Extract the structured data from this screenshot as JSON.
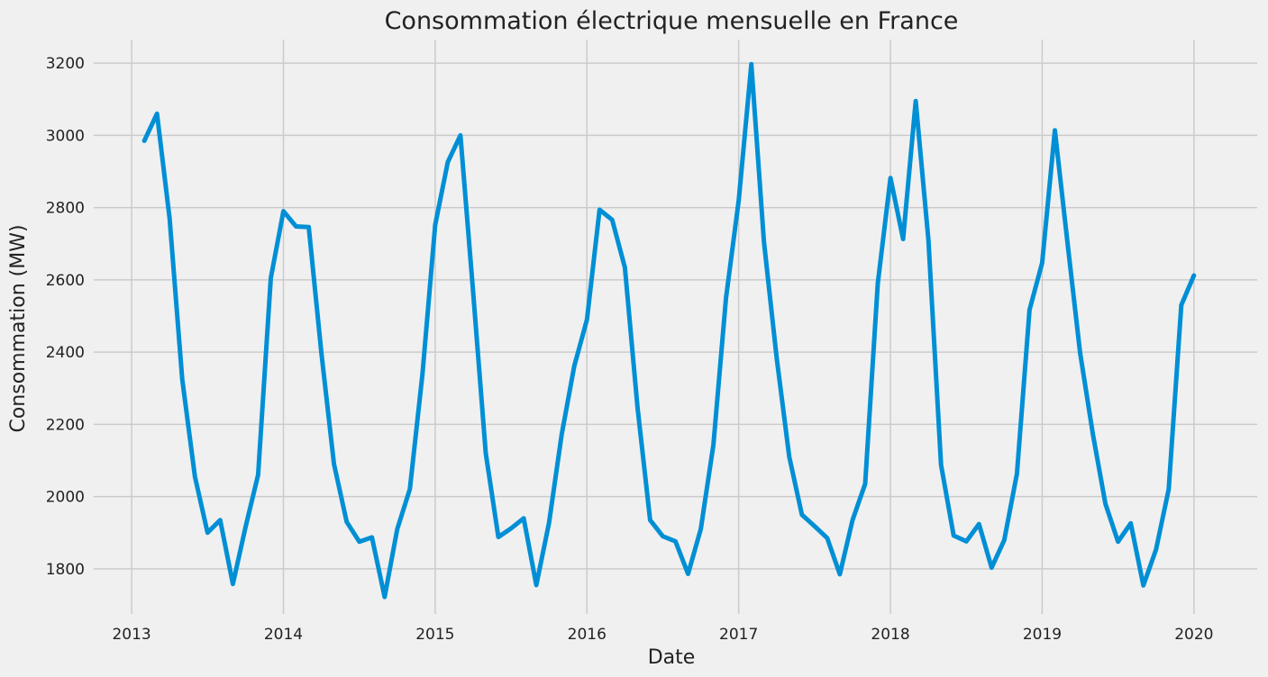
{
  "chart_data": {
    "type": "line",
    "title": "Consommation électrique mensuelle en France",
    "xlabel": "Date",
    "ylabel": "Consommation (MW)",
    "grid": true,
    "line_color": "#008fd5",
    "background_color": "#f0f0f0",
    "x_tick_labels": [
      "2013",
      "2014",
      "2015",
      "2016",
      "2017",
      "2018",
      "2019",
      "2020"
    ],
    "y_ticks": [
      1800,
      2000,
      2200,
      2400,
      2600,
      2800,
      3000,
      3200
    ],
    "xlim": [
      "2012-10",
      "2020-06"
    ],
    "ylim": [
      1675,
      3265
    ],
    "series": [
      {
        "x": [
          "2013-02",
          "2013-03",
          "2013-04",
          "2013-05",
          "2013-06",
          "2013-07",
          "2013-08",
          "2013-09",
          "2013-10",
          "2013-11",
          "2013-12",
          "2014-01",
          "2014-02",
          "2014-03",
          "2014-04",
          "2014-05",
          "2014-06",
          "2014-07",
          "2014-08",
          "2014-09",
          "2014-10",
          "2014-11",
          "2014-12",
          "2015-01",
          "2015-02",
          "2015-03",
          "2015-04",
          "2015-05",
          "2015-06",
          "2015-07",
          "2015-08",
          "2015-09",
          "2015-10",
          "2015-11",
          "2015-12",
          "2016-01",
          "2016-02",
          "2016-03",
          "2016-04",
          "2016-05",
          "2016-06",
          "2016-07",
          "2016-08",
          "2016-09",
          "2016-10",
          "2016-11",
          "2016-12",
          "2017-01",
          "2017-02",
          "2017-03",
          "2017-04",
          "2017-05",
          "2017-06",
          "2017-07",
          "2017-08",
          "2017-09",
          "2017-10",
          "2017-11",
          "2017-12",
          "2018-01",
          "2018-02",
          "2018-03",
          "2018-04",
          "2018-05",
          "2018-06",
          "2018-07",
          "2018-08",
          "2018-09",
          "2018-10",
          "2018-11",
          "2018-12",
          "2019-01",
          "2019-02",
          "2019-03",
          "2019-04",
          "2019-05",
          "2019-06",
          "2019-07",
          "2019-08",
          "2019-09",
          "2019-10",
          "2019-11",
          "2019-12",
          "2020-01"
        ],
        "values": [
          2985,
          3060,
          2770,
          2325,
          2055,
          1900,
          1935,
          1758,
          1915,
          2060,
          2605,
          2790,
          2748,
          2746,
          2398,
          2090,
          1930,
          1875,
          1887,
          1722,
          1910,
          2021,
          2340,
          2752,
          2926,
          3000,
          2566,
          2120,
          1888,
          1912,
          1940,
          1755,
          1927,
          2171,
          2361,
          2490,
          2794,
          2766,
          2634,
          2247,
          1935,
          1890,
          1876,
          1786,
          1910,
          2143,
          2550,
          2820,
          3197,
          2705,
          2384,
          2110,
          1950,
          1918,
          1885,
          1785,
          1935,
          2035,
          2590,
          2882,
          2713,
          3095,
          2710,
          2088,
          1892,
          1876,
          1924,
          1803,
          1879,
          2063,
          2517,
          2647,
          3014,
          2703,
          2398,
          2174,
          1980,
          1875,
          1926,
          1754,
          1853,
          2020,
          2530,
          2612
        ]
      }
    ]
  }
}
